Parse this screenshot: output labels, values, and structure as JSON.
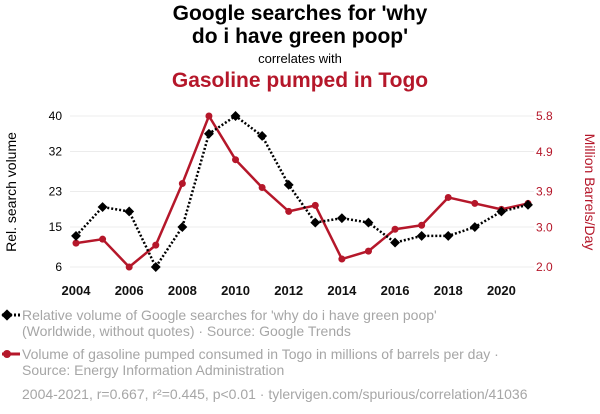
{
  "titles": {
    "line1": "Google searches for 'why",
    "line2": "do i have green poop'",
    "connector": "correlates with",
    "line3": "Gasoline pumped in Togo"
  },
  "legend": {
    "series1_line1": "Relative volume of Google searches for 'why do i have green poop'",
    "series1_line2": "(Worldwide, without quotes) · Source: Google Trends",
    "series2_line1": "Volume of gasoline pumped consumed in Togo in millions of barrels per day ·",
    "series2_line2": "Source: Energy Information Administration"
  },
  "footer": "2004-2021, r=0.667, r²=0.445, p<0.01 · tylervigen.com/spurious/correlation/41036",
  "colors": {
    "series1": "#000000",
    "series2": "#b5172a"
  },
  "chart_data": {
    "type": "line",
    "x": [
      2004,
      2005,
      2006,
      2007,
      2008,
      2009,
      2010,
      2011,
      2012,
      2013,
      2014,
      2015,
      2016,
      2017,
      2018,
      2019,
      2020,
      2021
    ],
    "xticks": [
      "2004",
      "2006",
      "2008",
      "2010",
      "2012",
      "2014",
      "2016",
      "2018",
      "2020"
    ],
    "xtick_values": [
      2004,
      2006,
      2008,
      2010,
      2012,
      2014,
      2016,
      2018,
      2020
    ],
    "xlim": [
      2004,
      2021
    ],
    "ylabel_left": "Rel. search volume",
    "ylabel_right": "Million Barrels/Day",
    "yticks_left": [
      "6",
      "15",
      "23",
      "32",
      "40"
    ],
    "ytick_left_values": [
      6,
      15,
      23,
      32,
      40
    ],
    "ylim_left": [
      6,
      40
    ],
    "yticks_right": [
      "2.0",
      "3.0",
      "3.9",
      "4.9",
      "5.8"
    ],
    "ytick_right_values": [
      2.0,
      3.0,
      3.9,
      4.9,
      5.8
    ],
    "ylim_right": [
      2.0,
      5.8
    ],
    "series": [
      {
        "name": "Relative volume of Google searches for 'why do i have green poop'",
        "axis": "left",
        "style": "dotted",
        "marker": "diamond",
        "values": [
          13,
          19.5,
          18.5,
          6,
          15,
          36,
          40,
          35.5,
          24.5,
          16,
          17,
          16,
          11.5,
          13,
          13,
          15,
          18.5,
          20
        ]
      },
      {
        "name": "Volume of gasoline pumped consumed in Togo in millions of barrels per day",
        "axis": "right",
        "style": "solid",
        "marker": "circle",
        "values": [
          2.6,
          2.7,
          2.0,
          2.55,
          4.1,
          5.8,
          4.7,
          4.0,
          3.4,
          3.55,
          2.2,
          2.4,
          2.95,
          3.05,
          3.75,
          3.6,
          3.45,
          3.6
        ]
      }
    ]
  }
}
